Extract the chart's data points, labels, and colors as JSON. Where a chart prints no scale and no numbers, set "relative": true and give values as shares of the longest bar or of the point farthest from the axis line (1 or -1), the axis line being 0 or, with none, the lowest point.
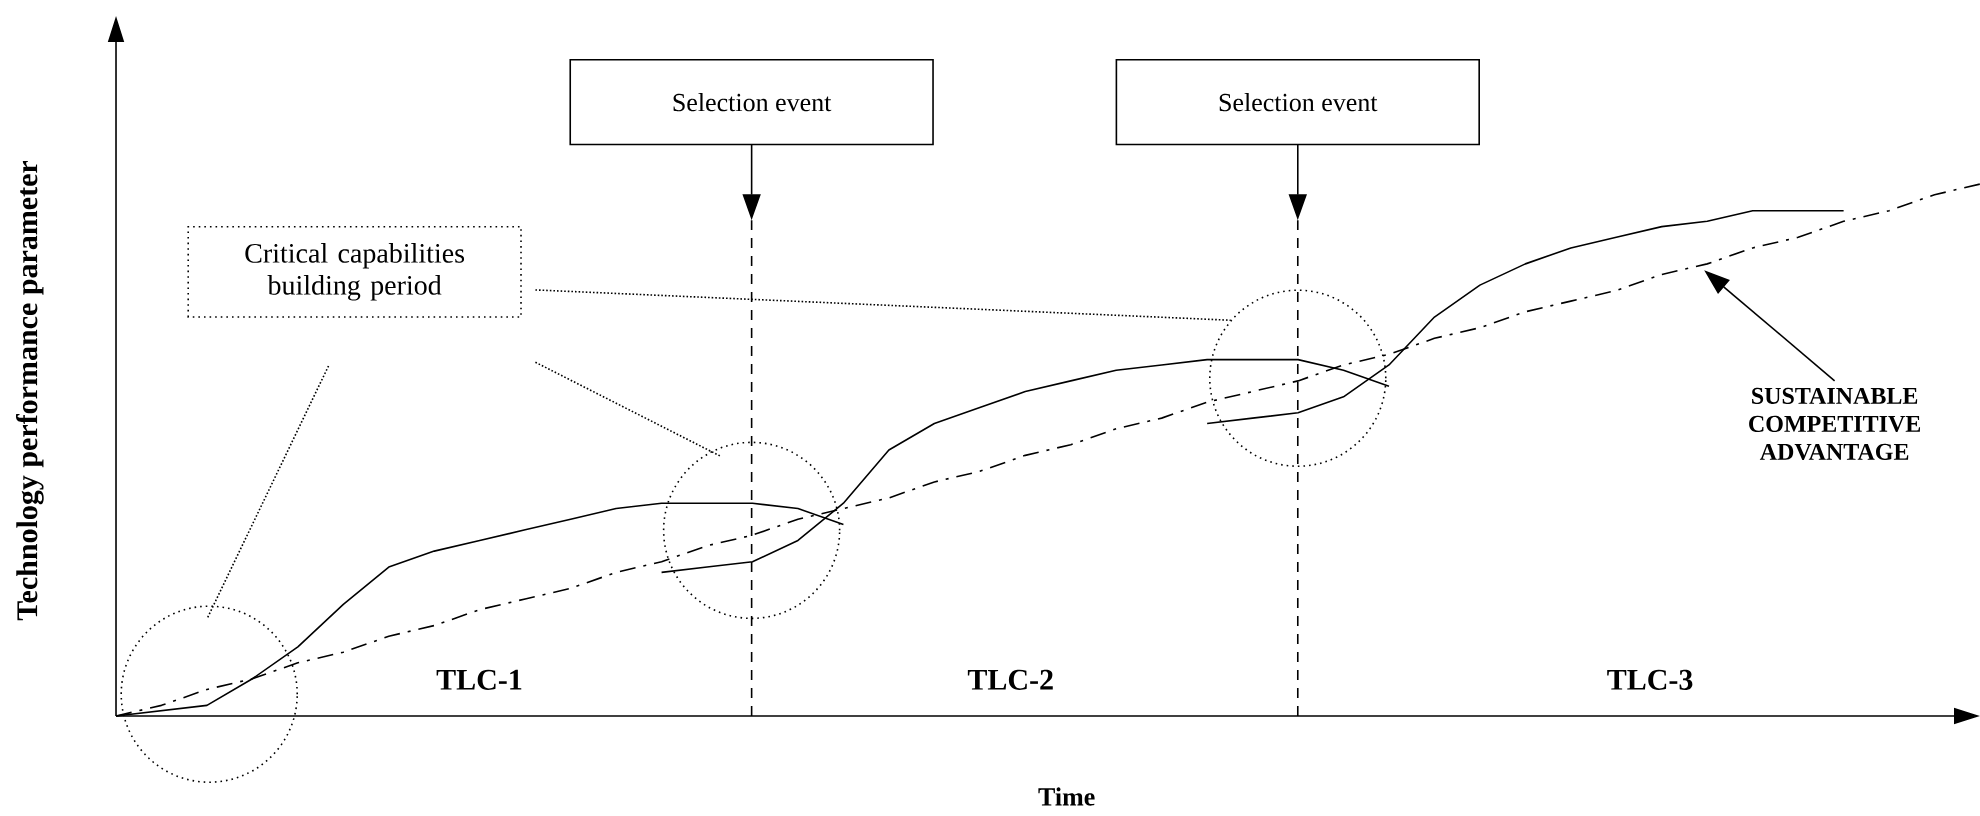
{
  "chart_data": {
    "type": "line",
    "relative": true,
    "xlabel": "Time",
    "ylabel": "Technology performance parameter",
    "line_style": "solid",
    "categories": [
      null,
      null,
      null,
      null,
      null,
      null,
      null,
      null,
      null,
      null,
      null,
      null,
      null,
      null,
      null,
      null,
      null,
      null,
      null,
      null,
      null,
      null,
      null,
      null,
      null,
      null,
      null,
      null,
      null,
      null,
      null,
      null,
      null,
      null,
      null,
      null,
      null,
      null,
      null,
      null,
      null,
      null
    ],
    "series": [
      {
        "color": "#000000",
        "values": [
          0,
          0.01,
          0.02,
          0.07,
          0.13,
          0.21,
          0.28,
          0.31,
          0.33,
          0.35,
          0.37,
          0.39,
          0.4,
          0.4,
          0.4,
          0.39,
          0.36,
          null,
          null,
          null,
          null,
          null,
          null,
          null,
          null,
          null,
          null,
          null,
          null,
          null,
          null,
          null,
          null,
          null,
          null,
          null,
          null,
          null,
          null,
          null,
          null,
          null
        ]
      },
      {
        "color": "#000000",
        "values": [
          null,
          null,
          null,
          null,
          null,
          null,
          null,
          null,
          null,
          null,
          null,
          null,
          0.27,
          0.28,
          0.29,
          0.33,
          0.4,
          0.5,
          0.55,
          0.58,
          0.61,
          0.63,
          0.65,
          0.66,
          0.67,
          0.67,
          0.67,
          0.65,
          0.62,
          null,
          null,
          null,
          null,
          null,
          null,
          null,
          null,
          null,
          null,
          null,
          null,
          null
        ]
      },
      {
        "color": "#000000",
        "values": [
          null,
          null,
          null,
          null,
          null,
          null,
          null,
          null,
          null,
          null,
          null,
          null,
          null,
          null,
          null,
          null,
          null,
          null,
          null,
          null,
          null,
          null,
          null,
          null,
          0.55,
          0.56,
          0.57,
          0.6,
          0.66,
          0.75,
          0.81,
          0.85,
          0.88,
          0.9,
          0.92,
          0.93,
          0.95,
          0.95,
          0.95,
          null,
          null,
          null
        ]
      },
      {
        "color": "#000000",
        "line_style": "dashdot",
        "values": [
          0,
          0.02,
          0.05,
          0.07,
          0.1,
          0.12,
          0.15,
          0.17,
          0.2,
          0.22,
          0.24,
          0.27,
          0.29,
          0.32,
          0.34,
          0.37,
          0.39,
          0.41,
          0.44,
          0.46,
          0.49,
          0.51,
          0.54,
          0.56,
          0.59,
          0.61,
          0.63,
          0.66,
          0.68,
          0.71,
          0.73,
          0.76,
          0.78,
          0.8,
          0.83,
          0.85,
          0.88,
          0.9,
          0.93,
          0.95,
          0.98,
          1
        ]
      }
    ],
    "annotations": [
      "Critical capabilities building period",
      "TLC-1",
      "TLC-2",
      "TLC-3",
      "SUSTAINABLE COMPETITIVE ADVANTAGE",
      "Selection event",
      "Selection event"
    ]
  }
}
